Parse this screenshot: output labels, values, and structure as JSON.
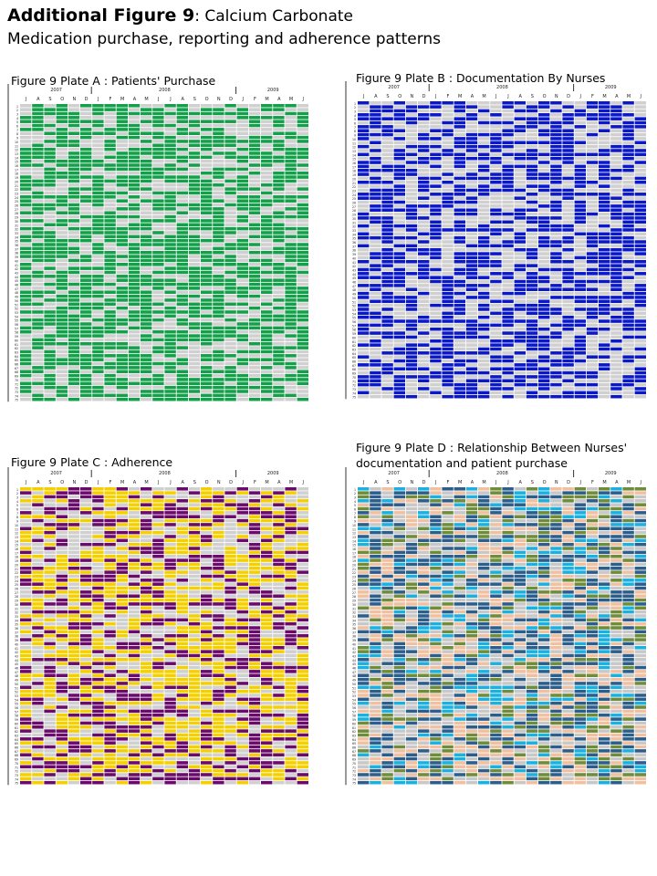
{
  "figure": {
    "title_bold": "Additional Figure  9",
    "title_rest": ": Calcium Carbonate",
    "subtitle": "Medication purchase, reporting and adherence patterns"
  },
  "colors": {
    "empty": "#d0d0d0",
    "purchase": "#14a04a",
    "documentation": "#0a18c8",
    "adherence_a": "#6a0a6a",
    "adherence_b": "#f5d000",
    "relationship": [
      "#c8c8c8",
      "#2c5e8c",
      "#f0c0a0",
      "#1ab0e0",
      "#6e8c3a"
    ]
  },
  "plates": [
    {
      "id": "A",
      "label": "Figure 9 Plate A :  Patients' Purchase"
    },
    {
      "id": "B",
      "label": "Figure 9 Plate B :  Documentation By Nurses"
    },
    {
      "id": "C",
      "label": "Figure 9 Plate C :  Adherence"
    },
    {
      "id": "D",
      "label": "Figure 9 Plate D :  Relationship Between Nurses'",
      "label2": "documentation and patient purchase"
    }
  ],
  "chart_data": [
    {
      "type": "heatmap",
      "title": "Figure 9 Plate A :  Patients' Purchase",
      "years": [
        "2007",
        "2008",
        "2009"
      ],
      "months": [
        "J",
        "A",
        "S",
        "O",
        "N",
        "D",
        "J",
        "F",
        "M",
        "A",
        "M",
        "J",
        "J",
        "A",
        "S",
        "O",
        "N",
        "D",
        "J",
        "F",
        "M",
        "A",
        "M",
        "J"
      ],
      "rows": [
        "1",
        "2",
        "3",
        "4",
        "5",
        "6",
        "7",
        "8",
        "9",
        "10",
        "11",
        "12",
        "13",
        "14",
        "15",
        "16",
        "17",
        "18",
        "19",
        "20",
        "21",
        "22",
        "23",
        "24",
        "25",
        "26",
        "27",
        "28",
        "29",
        "30",
        "31",
        "32",
        "33",
        "34",
        "35",
        "36",
        "37",
        "38",
        "39",
        "40",
        "41",
        "42",
        "43",
        "44",
        "45",
        "46",
        "47",
        "48",
        "49",
        "50",
        "51",
        "52",
        "53",
        "54",
        "55",
        "56",
        "57",
        "58",
        "59",
        "60",
        "61",
        "62",
        "63",
        "64",
        "65",
        "66",
        "67",
        "68",
        "69",
        "70",
        "71",
        "72",
        "73",
        "74",
        "75"
      ],
      "legend": "none"
    },
    {
      "type": "heatmap",
      "title": "Figure 9 Plate B :  Documentation By Nurses",
      "years": [
        "2007",
        "2008",
        "2009"
      ],
      "months": [
        "J",
        "A",
        "S",
        "O",
        "N",
        "D",
        "J",
        "F",
        "M",
        "A",
        "M",
        "J",
        "J",
        "A",
        "S",
        "O",
        "N",
        "D",
        "J",
        "F",
        "M",
        "A",
        "M",
        "J"
      ],
      "rows": [
        "1",
        "2",
        "3",
        "4",
        "5",
        "6",
        "7",
        "8",
        "9",
        "10",
        "11",
        "12",
        "13",
        "14",
        "15",
        "16",
        "17",
        "18",
        "19",
        "20",
        "21",
        "22",
        "23",
        "24",
        "25",
        "26",
        "27",
        "28",
        "29",
        "30",
        "31",
        "32",
        "33",
        "34",
        "35",
        "36",
        "37",
        "38",
        "39",
        "40",
        "41",
        "42",
        "43",
        "44",
        "45",
        "46",
        "47",
        "48",
        "49",
        "50",
        "51",
        "52",
        "53",
        "54",
        "55",
        "56",
        "57",
        "58",
        "59",
        "60",
        "61",
        "62",
        "63",
        "64",
        "65",
        "66",
        "67",
        "68",
        "69",
        "70",
        "71",
        "72",
        "73",
        "74",
        "75"
      ],
      "legend": "none"
    },
    {
      "type": "heatmap",
      "title": "Figure 9 Plate C :  Adherence",
      "years": [
        "2007",
        "2008",
        "2009"
      ],
      "months": [
        "J",
        "A",
        "S",
        "O",
        "N",
        "D",
        "J",
        "F",
        "M",
        "A",
        "M",
        "J",
        "J",
        "A",
        "S",
        "O",
        "N",
        "D",
        "J",
        "F",
        "M",
        "A",
        "M",
        "J"
      ],
      "rows": [
        "1",
        "2",
        "3",
        "4",
        "5",
        "6",
        "7",
        "8",
        "9",
        "10",
        "11",
        "12",
        "13",
        "14",
        "15",
        "16",
        "17",
        "18",
        "19",
        "20",
        "21",
        "22",
        "23",
        "24",
        "25",
        "26",
        "27",
        "28",
        "29",
        "30",
        "31",
        "32",
        "33",
        "34",
        "35",
        "36",
        "37",
        "38",
        "39",
        "40",
        "41",
        "42",
        "43",
        "44",
        "45",
        "46",
        "47",
        "48",
        "49",
        "50",
        "51",
        "52",
        "53",
        "54",
        "55",
        "56",
        "57",
        "58",
        "59",
        "60",
        "61",
        "62",
        "63",
        "64",
        "65",
        "66",
        "67",
        "68",
        "69",
        "70",
        "71",
        "72",
        "73",
        "74",
        "75"
      ],
      "legend": "none"
    },
    {
      "type": "heatmap",
      "title": "Figure 9 Plate D :  Relationship Between Nurses' documentation and patient purchase",
      "years": [
        "2007",
        "2008",
        "2009"
      ],
      "months": [
        "J",
        "A",
        "S",
        "O",
        "N",
        "D",
        "J",
        "F",
        "M",
        "A",
        "M",
        "J",
        "J",
        "A",
        "S",
        "O",
        "N",
        "D",
        "J",
        "F",
        "M",
        "A",
        "M",
        "J"
      ],
      "rows": [
        "1",
        "2",
        "3",
        "4",
        "5",
        "6",
        "7",
        "8",
        "9",
        "10",
        "11",
        "12",
        "13",
        "14",
        "15",
        "16",
        "17",
        "18",
        "19",
        "20",
        "21",
        "22",
        "23",
        "24",
        "25",
        "26",
        "27",
        "28",
        "29",
        "30",
        "31",
        "32",
        "33",
        "34",
        "35",
        "36",
        "37",
        "38",
        "39",
        "40",
        "41",
        "42",
        "43",
        "44",
        "45",
        "46",
        "47",
        "48",
        "49",
        "50",
        "51",
        "52",
        "53",
        "54",
        "55",
        "56",
        "57",
        "58",
        "59",
        "60",
        "61",
        "62",
        "63",
        "64",
        "65",
        "66",
        "67",
        "68",
        "69",
        "70",
        "71",
        "72",
        "73",
        "74",
        "75"
      ],
      "legend": "none"
    }
  ]
}
